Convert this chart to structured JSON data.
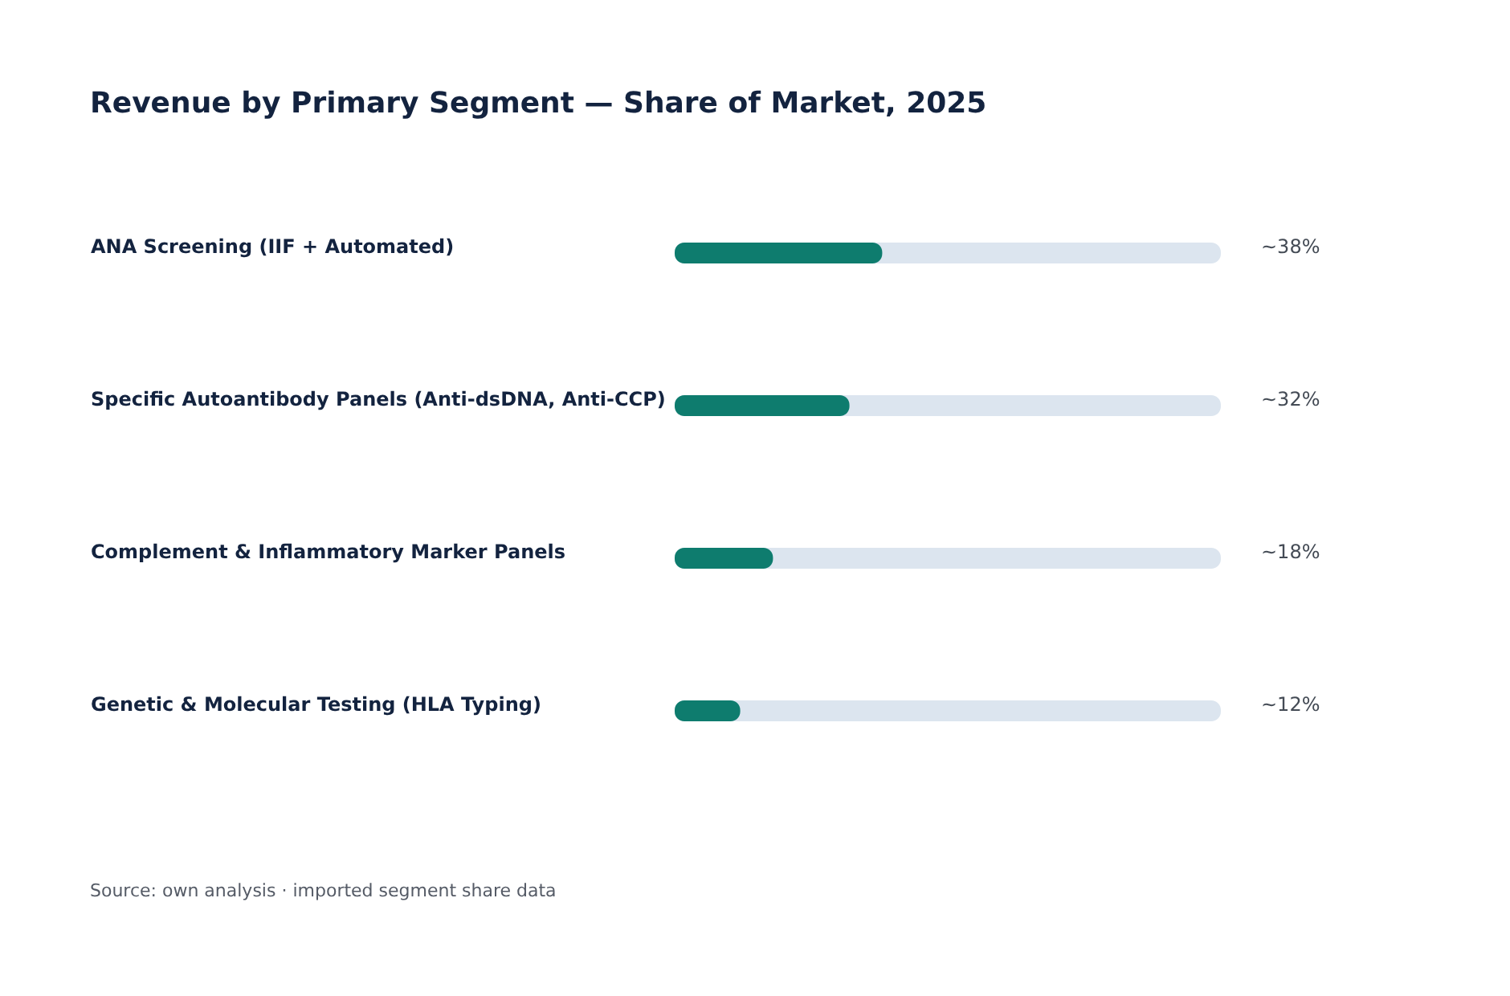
{
  "chart_data": {
    "type": "bar",
    "orientation": "horizontal",
    "title": "Revenue by Primary Segment — Share of Market, 2025",
    "categories": [
      "ANA Screening (IIF + Automated)",
      "Specific Autoantibody Panels (Anti-dsDNA, Anti-CCP)",
      "Complement & Inflammatory Marker Panels",
      "Genetic & Molecular Testing (HLA Typing)"
    ],
    "values": [
      38,
      32,
      18,
      12
    ],
    "value_labels": [
      "~38%",
      "~32%",
      "~18%",
      "~12%"
    ],
    "color": "#0e7c6e",
    "xlim": [
      0,
      100
    ],
    "tick_labels": "y",
    "grid": false,
    "annotations": [
      "Source: own analysis · imported segment share data"
    ]
  }
}
